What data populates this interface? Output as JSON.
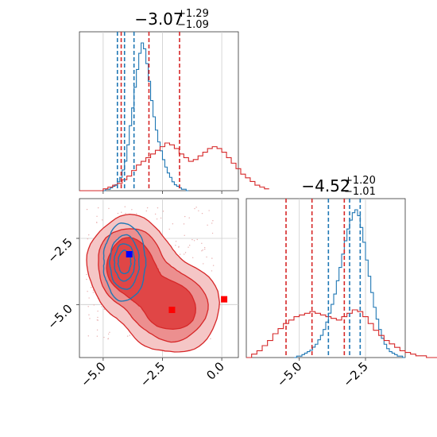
{
  "chart_data": [
    {
      "type": "histogram",
      "panel": "top-left (param 1 marginal)",
      "title": {
        "value": "−3.07",
        "plus": "+1.29",
        "minus": "−1.09"
      },
      "xlim": [
        -6.0,
        0.7
      ],
      "x_ticks": [
        -5.0,
        -2.5,
        0.0
      ],
      "tick_labels_shown": false,
      "series": [
        {
          "color": "#1f77b4",
          "bin_width": 0.1,
          "bins_from": -5.0,
          "counts": [
            0,
            1,
            1,
            2,
            3,
            4,
            6,
            9,
            14,
            20,
            31,
            44,
            56,
            70,
            82,
            93,
            100,
            96,
            86,
            74,
            61,
            50,
            41,
            33,
            27,
            21,
            16,
            12,
            9,
            6,
            4,
            3,
            2,
            1,
            1,
            0
          ],
          "quantile_lines": [
            -4.4,
            -4.1,
            -3.7
          ]
        },
        {
          "color": "#d62728",
          "bin_width": 0.2,
          "bins_from": -6.0,
          "counts": [
            0,
            0,
            0,
            0,
            0,
            1,
            2,
            3,
            4,
            6,
            8,
            11,
            14,
            16,
            18,
            20,
            22,
            24,
            26,
            25,
            23,
            20,
            18,
            16,
            17,
            19,
            21,
            23,
            24,
            23,
            21,
            18,
            15,
            12,
            9,
            7,
            5,
            3,
            2,
            1
          ],
          "quantile_lines": [
            -4.24,
            -3.07,
            -1.78
          ]
        }
      ],
      "grid": true
    },
    {
      "type": "contour_density_2d",
      "panel": "bottom-left (param 1 vs param 2)",
      "xlim": [
        -6.0,
        0.7
      ],
      "ylim": [
        -7.0,
        -1.0
      ],
      "x_ticks": [
        -5.0,
        -2.5,
        0.0
      ],
      "x_tick_labels": [
        "−5.0",
        "−2.5",
        "0.0"
      ],
      "y_ticks": [
        -2.5,
        -5.0
      ],
      "y_tick_labels": [
        "−2.5",
        "−5.0"
      ],
      "series": [
        {
          "color": "#d62728",
          "style": "filled contours",
          "modes": [
            {
              "x": -3.9,
              "y": -3.5,
              "sx": 0.85,
              "sy": 0.9,
              "w": 1.0
            },
            {
              "x": -2.1,
              "y": -5.1,
              "sx": 1.0,
              "sy": 0.85,
              "w": 0.9
            }
          ],
          "marker": {
            "x": -2.1,
            "y": -5.2,
            "shape": "square"
          }
        },
        {
          "color": "#1f77b4",
          "style": "contour lines",
          "modes": [
            {
              "x": -4.1,
              "y": -3.4,
              "sx": 0.45,
              "sy": 0.75,
              "w": 1.0
            }
          ],
          "marker": {
            "x": -3.9,
            "y": -3.1,
            "shape": "square",
            "color": "#0000ff"
          }
        }
      ],
      "extra_markers": [
        {
          "x": 0.1,
          "y": -4.8,
          "shape": "square",
          "color": "#ff0000"
        }
      ],
      "reference_lines": {
        "x": -2.5,
        "y": -2.5,
        "color": "#bbbbbb"
      },
      "grid": true
    },
    {
      "type": "histogram",
      "panel": "bottom-right (param 2 marginal)",
      "title": {
        "value": "−4.52",
        "plus": "+1.20",
        "minus": "−1.01"
      },
      "xlim": [
        -7.0,
        -1.0
      ],
      "x_ticks": [
        -5.0,
        -2.5
      ],
      "x_tick_labels": [
        "−5.0",
        "−2.5"
      ],
      "series": [
        {
          "color": "#1f77b4",
          "bin_width": 0.1,
          "bins_from": -5.2,
          "counts": [
            0,
            1,
            1,
            2,
            3,
            4,
            5,
            7,
            9,
            12,
            15,
            19,
            24,
            30,
            36,
            43,
            52,
            61,
            70,
            79,
            87,
            93,
            98,
            100,
            96,
            88,
            78,
            66,
            55,
            44,
            34,
            26,
            19,
            13,
            9,
            6,
            4,
            3,
            2,
            1,
            1,
            0
          ],
          "quantile_lines": [
            -3.9,
            -3.1,
            -2.7
          ]
        },
        {
          "color": "#d62728",
          "bin_width": 0.2,
          "bins_from": -7.0,
          "counts": [
            0,
            2,
            4,
            7,
            10,
            14,
            17,
            20,
            22,
            24,
            25,
            26,
            27,
            26,
            25,
            24,
            23,
            22,
            24,
            26,
            28,
            27,
            24,
            20,
            16,
            13,
            10,
            8,
            6,
            4,
            3,
            2,
            1,
            1,
            0,
            0
          ],
          "quantile_lines": [
            -5.5,
            -4.52,
            -3.3
          ]
        }
      ],
      "grid": true
    }
  ]
}
